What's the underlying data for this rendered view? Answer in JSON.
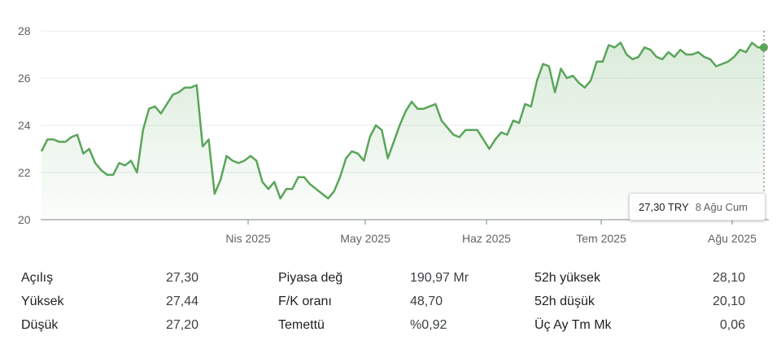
{
  "chart_data": {
    "type": "area",
    "x_ticks": [
      "Nis 2025",
      "May 2025",
      "Haz 2025",
      "Tem 2025",
      "Ağu 2025"
    ],
    "y_ticks": [
      20,
      22,
      24,
      26,
      28
    ],
    "ylim": [
      20,
      28.4
    ],
    "values": [
      22.9,
      23.4,
      23.4,
      23.3,
      23.3,
      23.5,
      23.6,
      22.8,
      23.0,
      22.4,
      22.1,
      21.9,
      21.9,
      22.4,
      22.3,
      22.5,
      22.0,
      23.8,
      24.7,
      24.8,
      24.5,
      24.9,
      25.3,
      25.4,
      25.6,
      25.6,
      25.7,
      23.1,
      23.4,
      21.1,
      21.7,
      22.7,
      22.5,
      22.4,
      22.5,
      22.7,
      22.5,
      21.6,
      21.3,
      21.6,
      20.9,
      21.3,
      21.3,
      21.8,
      21.8,
      21.5,
      21.3,
      21.1,
      20.9,
      21.2,
      21.8,
      22.6,
      22.9,
      22.8,
      22.5,
      23.5,
      24.0,
      23.8,
      22.6,
      23.3,
      24.0,
      24.6,
      25.0,
      24.7,
      24.7,
      24.8,
      24.9,
      24.2,
      23.9,
      23.6,
      23.5,
      23.8,
      23.8,
      23.8,
      23.4,
      23.0,
      23.4,
      23.7,
      23.6,
      24.2,
      24.1,
      24.9,
      24.8,
      25.9,
      26.6,
      26.5,
      25.4,
      26.4,
      26.0,
      26.1,
      25.8,
      25.6,
      25.9,
      26.7,
      26.7,
      27.4,
      27.3,
      27.5,
      27.0,
      26.8,
      26.9,
      27.3,
      27.2,
      26.9,
      26.8,
      27.1,
      26.9,
      27.2,
      27.0,
      27.0,
      27.1,
      26.9,
      26.8,
      26.5,
      26.6,
      26.7,
      26.9,
      27.2,
      27.1,
      27.5,
      27.3,
      27.3
    ],
    "grid": true,
    "line_color": "#5aa55a",
    "fill_color": "#5aa55a",
    "last_value": 27.3
  },
  "tooltip": {
    "price": "27,30 TRY",
    "date": "8 Ağu Cum"
  },
  "stats": [
    {
      "label": "Açılış",
      "value": "27,30"
    },
    {
      "label": "Yüksek",
      "value": "27,44"
    },
    {
      "label": "Düşük",
      "value": "27,20"
    },
    {
      "label": "Piyasa değ",
      "value": "190,97 Mr"
    },
    {
      "label": "F/K oranı",
      "value": "48,70"
    },
    {
      "label": "Temettü",
      "value": "%0,92"
    },
    {
      "label": "52h yüksek",
      "value": "28,10"
    },
    {
      "label": "52h düşük",
      "value": "20,10"
    },
    {
      "label": "Üç Ay Tm Mk",
      "value": "0,06"
    }
  ]
}
